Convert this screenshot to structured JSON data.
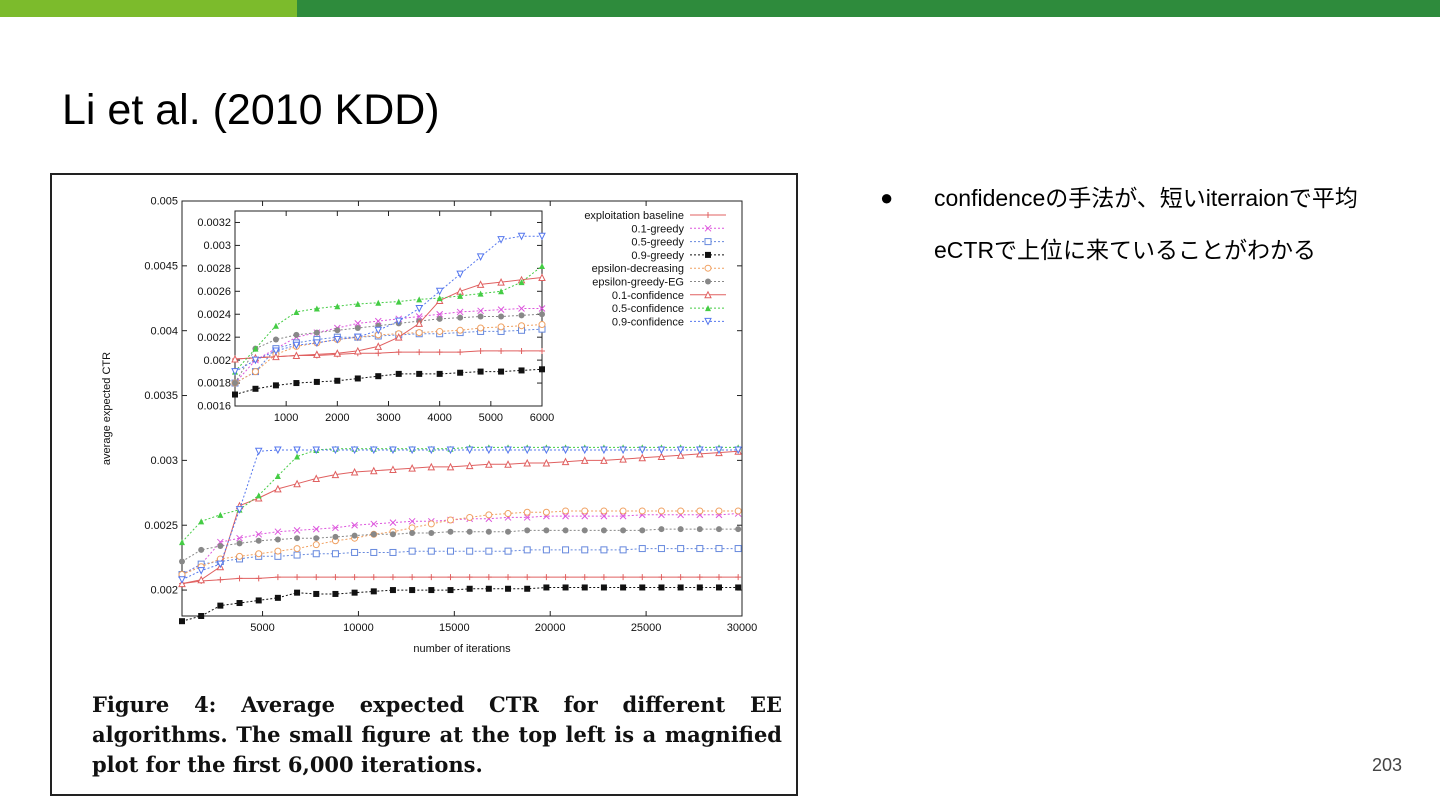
{
  "slide": {
    "title": "Li et al. (2010 KDD)",
    "page_number": "203",
    "bullets": [
      "confidenceの手法が、短いiterraionで平均eCTRで上位に来ていることがわかる"
    ],
    "caption": "Figure 4: Average expected CTR for different EE algorithms. The small figure at the top left is a magnified plot for the first 6,000 iterations.",
    "colors": {
      "top_bar_left": "#7cbb2c",
      "top_bar_right": "#2e8b3c"
    }
  },
  "chart_data": [
    {
      "type": "line",
      "xlabel": "number of iterations",
      "ylabel": "average expected CTR",
      "xlim": [
        800,
        30000
      ],
      "ylim": [
        0.0018,
        0.005
      ],
      "xticks": [
        5000,
        10000,
        15000,
        20000,
        25000,
        30000
      ],
      "xtick_labels": [
        "5000",
        "10000",
        "15000",
        "20000",
        "25000",
        "30000"
      ],
      "yticks": [
        0.002,
        0.0025,
        0.003,
        0.0035,
        0.004,
        0.0045,
        0.005
      ],
      "ytick_labels": [
        "0.002",
        "0.0025",
        "0.003",
        "0.0035",
        "0.004",
        "0.0045",
        "0.005"
      ],
      "grid": false,
      "legend": "top-right",
      "x": [
        800,
        1800,
        2800,
        3800,
        4800,
        5800,
        6800,
        7800,
        8800,
        9800,
        10800,
        11800,
        12800,
        13800,
        14800,
        15800,
        16800,
        17800,
        18800,
        19800,
        20800,
        21800,
        22800,
        23800,
        24800,
        25800,
        26800,
        27800,
        28800,
        29800
      ],
      "series": [
        {
          "name": "exploitation baseline",
          "color": "#e06060",
          "marker": "plus",
          "values": [
            0.00205,
            0.00207,
            0.00208,
            0.00209,
            0.00209,
            0.0021,
            0.0021,
            0.0021,
            0.0021,
            0.0021,
            0.0021,
            0.0021,
            0.0021,
            0.0021,
            0.0021,
            0.0021,
            0.0021,
            0.0021,
            0.0021,
            0.0021,
            0.0021,
            0.0021,
            0.0021,
            0.0021,
            0.0021,
            0.0021,
            0.0021,
            0.0021,
            0.0021,
            0.0021
          ]
        },
        {
          "name": "0.1-greedy",
          "color": "#dd55dd",
          "marker": "x",
          "values": [
            0.00212,
            0.0022,
            0.00237,
            0.0024,
            0.00243,
            0.00245,
            0.00246,
            0.00247,
            0.00248,
            0.0025,
            0.00251,
            0.00252,
            0.00253,
            0.00253,
            0.00254,
            0.00255,
            0.00255,
            0.00256,
            0.00256,
            0.00257,
            0.00257,
            0.00257,
            0.00257,
            0.00257,
            0.00258,
            0.00258,
            0.00258,
            0.00258,
            0.00258,
            0.00259
          ]
        },
        {
          "name": "0.5-greedy",
          "color": "#6688dd",
          "marker": "square-open",
          "values": [
            0.00212,
            0.0022,
            0.00222,
            0.00224,
            0.00226,
            0.00226,
            0.00227,
            0.00228,
            0.00228,
            0.00229,
            0.00229,
            0.00229,
            0.0023,
            0.0023,
            0.0023,
            0.0023,
            0.0023,
            0.0023,
            0.00231,
            0.00231,
            0.00231,
            0.00231,
            0.00231,
            0.00231,
            0.00232,
            0.00232,
            0.00232,
            0.00232,
            0.00232,
            0.00232
          ]
        },
        {
          "name": "0.9-greedy",
          "color": "#111111",
          "marker": "square-filled",
          "values": [
            0.00176,
            0.0018,
            0.00188,
            0.0019,
            0.00192,
            0.00194,
            0.00198,
            0.00197,
            0.00197,
            0.00198,
            0.00199,
            0.002,
            0.002,
            0.002,
            0.002,
            0.00201,
            0.00201,
            0.00201,
            0.00201,
            0.00202,
            0.00202,
            0.00202,
            0.00202,
            0.00202,
            0.00202,
            0.00202,
            0.00202,
            0.00202,
            0.00202,
            0.00202
          ]
        },
        {
          "name": "epsilon-decreasing",
          "color": "#f0a060",
          "marker": "circle-open",
          "values": [
            0.00212,
            0.00218,
            0.00224,
            0.00226,
            0.00228,
            0.0023,
            0.00232,
            0.00235,
            0.00238,
            0.0024,
            0.00243,
            0.00245,
            0.00248,
            0.00251,
            0.00254,
            0.00256,
            0.00258,
            0.00259,
            0.0026,
            0.0026,
            0.00261,
            0.00261,
            0.00261,
            0.00261,
            0.00261,
            0.00261,
            0.00261,
            0.00261,
            0.00261,
            0.00261
          ]
        },
        {
          "name": "epsilon-greedy-EG",
          "color": "#888888",
          "marker": "circle-filled",
          "values": [
            0.00222,
            0.00231,
            0.00234,
            0.00236,
            0.00238,
            0.00239,
            0.0024,
            0.0024,
            0.00241,
            0.00242,
            0.00243,
            0.00243,
            0.00244,
            0.00244,
            0.00245,
            0.00245,
            0.00245,
            0.00245,
            0.00246,
            0.00246,
            0.00246,
            0.00246,
            0.00246,
            0.00246,
            0.00246,
            0.00247,
            0.00247,
            0.00247,
            0.00247,
            0.00247
          ]
        },
        {
          "name": "0.1-confidence",
          "color": "#e06060",
          "marker": "triangle-up-open",
          "values": [
            0.00205,
            0.00208,
            0.00218,
            0.00265,
            0.00271,
            0.00278,
            0.00282,
            0.00286,
            0.00289,
            0.00291,
            0.00292,
            0.00293,
            0.00294,
            0.00295,
            0.00295,
            0.00296,
            0.00297,
            0.00297,
            0.00298,
            0.00298,
            0.00299,
            0.003,
            0.003,
            0.00301,
            0.00302,
            0.00303,
            0.00304,
            0.00305,
            0.00306,
            0.00307
          ]
        },
        {
          "name": "0.5-confidence",
          "color": "#44cc44",
          "marker": "triangle-up-filled",
          "values": [
            0.00237,
            0.00253,
            0.00258,
            0.00262,
            0.00273,
            0.00288,
            0.00303,
            0.00308,
            0.00309,
            0.00309,
            0.00309,
            0.00309,
            0.00309,
            0.00309,
            0.00309,
            0.0031,
            0.0031,
            0.0031,
            0.0031,
            0.0031,
            0.0031,
            0.0031,
            0.0031,
            0.0031,
            0.0031,
            0.0031,
            0.0031,
            0.0031,
            0.0031,
            0.0031
          ]
        },
        {
          "name": "0.9-confidence",
          "color": "#5577ee",
          "marker": "triangle-down-open",
          "values": [
            0.00208,
            0.00215,
            0.0022,
            0.00262,
            0.00307,
            0.00308,
            0.00308,
            0.00308,
            0.00308,
            0.00308,
            0.00308,
            0.00308,
            0.00308,
            0.00308,
            0.00308,
            0.00308,
            0.00308,
            0.00308,
            0.00308,
            0.00308,
            0.00308,
            0.00308,
            0.00308,
            0.00308,
            0.00308,
            0.00308,
            0.00308,
            0.00308,
            0.00308,
            0.00308
          ]
        }
      ]
    },
    {
      "type": "line",
      "xlim": [
        0,
        6000
      ],
      "ylim": [
        0.0016,
        0.0033
      ],
      "xticks": [
        1000,
        2000,
        3000,
        4000,
        5000,
        6000
      ],
      "xtick_labels": [
        "1000",
        "2000",
        "3000",
        "4000",
        "5000",
        "6000"
      ],
      "yticks": [
        0.0016,
        0.0018,
        0.002,
        0.0022,
        0.0024,
        0.0026,
        0.0028,
        0.003,
        0.0032
      ],
      "ytick_labels": [
        "0.0016",
        "0.0018",
        "0.002",
        "0.0022",
        "0.0024",
        "0.0026",
        "0.0028",
        "0.003",
        "0.0032"
      ],
      "grid": false,
      "x": [
        0,
        400,
        800,
        1200,
        1600,
        2000,
        2400,
        2800,
        3200,
        3600,
        4000,
        4400,
        4800,
        5200,
        5600,
        6000
      ],
      "series": [
        {
          "name": "exploitation baseline",
          "values": [
            0.00201,
            0.00202,
            0.00203,
            0.00204,
            0.00204,
            0.00205,
            0.00206,
            0.00206,
            0.00207,
            0.00207,
            0.00207,
            0.00207,
            0.00208,
            0.00208,
            0.00208,
            0.00208
          ]
        },
        {
          "name": "0.1-greedy",
          "values": [
            0.0018,
            0.002,
            0.0021,
            0.0022,
            0.00224,
            0.00228,
            0.00232,
            0.00234,
            0.00236,
            0.00238,
            0.0024,
            0.00242,
            0.00243,
            0.00244,
            0.00245,
            0.00245
          ]
        },
        {
          "name": "0.5-greedy",
          "values": [
            0.0018,
            0.0019,
            0.0021,
            0.00215,
            0.00218,
            0.0022,
            0.0022,
            0.00221,
            0.00222,
            0.00223,
            0.00223,
            0.00224,
            0.00225,
            0.00225,
            0.00226,
            0.00227
          ]
        },
        {
          "name": "0.9-greedy",
          "values": [
            0.0017,
            0.00175,
            0.00178,
            0.0018,
            0.00181,
            0.00182,
            0.00184,
            0.00186,
            0.00188,
            0.00188,
            0.00188,
            0.00189,
            0.0019,
            0.0019,
            0.00191,
            0.00192
          ]
        },
        {
          "name": "epsilon-decreasing",
          "values": [
            0.0018,
            0.0019,
            0.00205,
            0.00212,
            0.00215,
            0.00218,
            0.0022,
            0.00222,
            0.00223,
            0.00224,
            0.00225,
            0.00226,
            0.00228,
            0.00229,
            0.0023,
            0.00231
          ]
        },
        {
          "name": "epsilon-greedy-EG",
          "values": [
            0.0018,
            0.0021,
            0.00218,
            0.00222,
            0.00224,
            0.00226,
            0.00228,
            0.0023,
            0.00232,
            0.00234,
            0.00236,
            0.00237,
            0.00238,
            0.00238,
            0.00239,
            0.0024
          ]
        },
        {
          "name": "0.1-confidence",
          "values": [
            0.00201,
            0.00202,
            0.00203,
            0.00204,
            0.00205,
            0.00206,
            0.00208,
            0.00212,
            0.0022,
            0.00232,
            0.00252,
            0.0026,
            0.00266,
            0.00268,
            0.0027,
            0.00272
          ]
        },
        {
          "name": "0.5-confidence",
          "values": [
            0.0019,
            0.0021,
            0.0023,
            0.00242,
            0.00245,
            0.00247,
            0.00249,
            0.0025,
            0.00251,
            0.00253,
            0.00254,
            0.00256,
            0.00258,
            0.0026,
            0.00268,
            0.00282
          ]
        },
        {
          "name": "0.9-confidence",
          "values": [
            0.0019,
            0.002,
            0.00208,
            0.00213,
            0.00215,
            0.00218,
            0.0022,
            0.00226,
            0.00234,
            0.00245,
            0.0026,
            0.00275,
            0.0029,
            0.00305,
            0.00308,
            0.00308
          ]
        }
      ]
    }
  ]
}
